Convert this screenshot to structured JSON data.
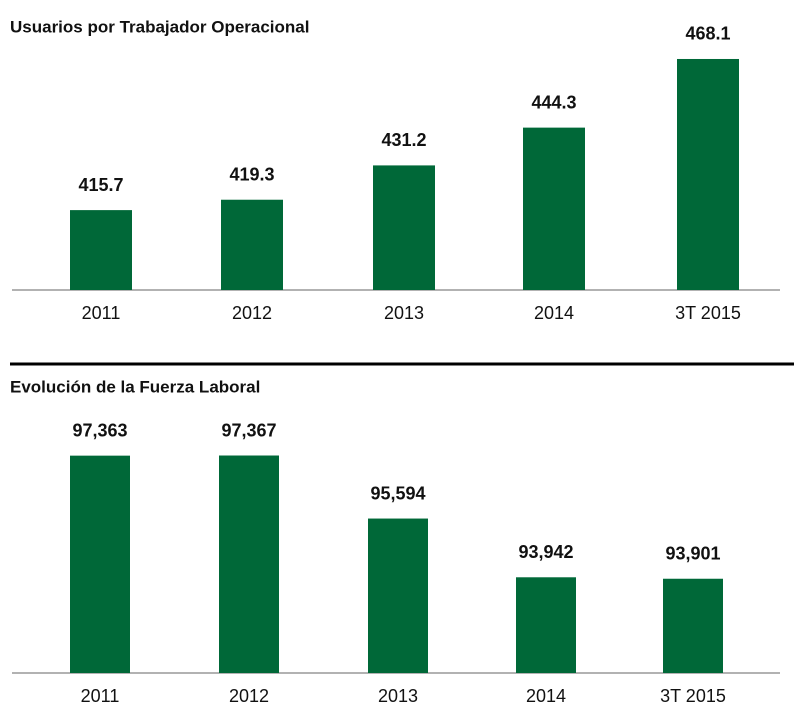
{
  "chart_data": [
    {
      "type": "bar",
      "title": "Usuarios por Trabajador Operacional",
      "categories": [
        "2011",
        "2012",
        "2013",
        "2014",
        "3T 2015"
      ],
      "values": [
        415.7,
        419.3,
        431.2,
        444.3,
        468.1
      ],
      "color": "#006838",
      "ylim": [
        388,
        470
      ]
    },
    {
      "type": "bar",
      "title": "Evolución de la Fuerza Laboral",
      "categories": [
        "2011",
        "2012",
        "2013",
        "2014",
        "3T 2015"
      ],
      "values": [
        97363,
        97367,
        95594,
        93942,
        93901
      ],
      "value_labels": [
        "97,363",
        "97,367",
        "95,594",
        "93,942",
        "93,901"
      ],
      "color": "#006838",
      "ylim": [
        91250,
        98000
      ]
    }
  ]
}
